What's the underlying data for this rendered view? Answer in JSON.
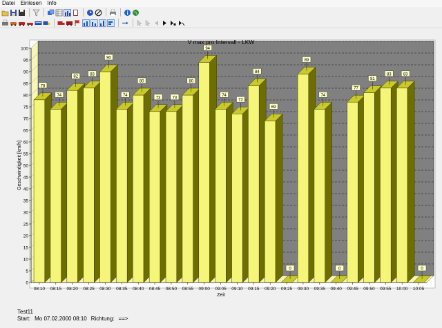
{
  "menu": {
    "items": [
      "Datei",
      "Einlesen",
      "Info"
    ]
  },
  "toolbar1": [
    "open-folder-icon",
    "save-icon",
    "save-as-icon",
    "filter-icon",
    "copy-window-icon",
    "table-icon",
    "bar-chart-icon",
    "notebook-icon",
    "clock-icon",
    "no-entry-icon",
    "print-icon",
    "info-icon",
    "globe-icon"
  ],
  "toolbar2": [
    "printer-small-icon",
    "car-icon",
    "car-red-icon",
    "car-small-icon",
    "bus-icon",
    "truck-blue-icon",
    "truck-red-icon",
    "vehicle-icon",
    "flag-icon",
    "bar-view-icon",
    "bar-view-2-icon",
    "bar-view-3-icon",
    "bar-view-4-icon",
    "arrow-line-icon",
    "cursor-icon",
    "cursor-2-icon",
    "play-left-icon",
    "play-right-icon",
    "skip-next-icon",
    "skip-end-icon"
  ],
  "colors": {
    "bar_face": "#f5f57a",
    "bar_side": "#6e6e00",
    "bar_top": "#c9c92a",
    "plot_bg": "#808080",
    "left_wall": "#f6f6b8",
    "floor": "#f6f6b8"
  },
  "chart_data": {
    "type": "bar",
    "title": "V max pro Intervall - LKW",
    "xlabel": "Zeit",
    "ylabel": "Geschwindigkeit [km/h]",
    "ylim": [
      0,
      100
    ],
    "yticks": [
      0,
      5,
      10,
      15,
      20,
      25,
      30,
      35,
      40,
      45,
      50,
      55,
      60,
      65,
      70,
      75,
      80,
      85,
      90,
      95,
      100
    ],
    "grid": true,
    "categories": [
      "08:10",
      "08:15",
      "08:20",
      "08:25",
      "08:30",
      "08:35",
      "08:40",
      "08:45",
      "08:50",
      "08:55",
      "09:00",
      "09:05",
      "09:10",
      "09:15",
      "09:20",
      "09:25",
      "09:30",
      "09:35",
      "09:40",
      "09:45",
      "09:50",
      "09:55",
      "10:00",
      "10:05"
    ],
    "values": [
      78,
      74,
      82,
      83,
      90,
      74,
      80,
      73,
      73,
      80,
      94,
      74,
      72,
      84,
      69,
      0,
      89,
      74,
      0,
      77,
      81,
      83,
      83,
      0
    ]
  },
  "footer": {
    "line1": "Test11",
    "start_label": "Start:",
    "start_value": "Mo  07.02.2000  08:10",
    "direction_label": "Richtung:",
    "direction_value": "==>"
  }
}
